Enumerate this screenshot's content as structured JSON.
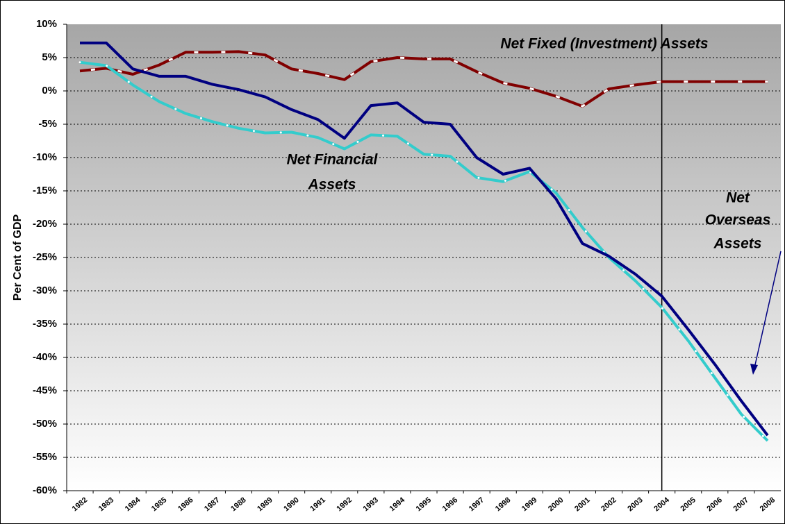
{
  "chart_data": {
    "type": "line",
    "y_label": "Per Cent of GDP",
    "categories": [
      "1982",
      "1983",
      "1984",
      "1985",
      "1986",
      "1987",
      "1988",
      "1989",
      "1990",
      "1991",
      "1992",
      "1993",
      "1994",
      "1995",
      "1996",
      "1997",
      "1998",
      "1999",
      "2000",
      "2001",
      "2002",
      "2003",
      "2004",
      "2005",
      "2006",
      "2007",
      "2008"
    ],
    "series": [
      {
        "name": "Net Overseas Assets",
        "color": "#000080",
        "style": "solid",
        "values": [
          7.2,
          7.2,
          3.3,
          2.2,
          2.2,
          1.0,
          0.2,
          -0.9,
          -2.8,
          -4.3,
          -7.1,
          -2.2,
          -1.8,
          -4.7,
          -5.0,
          -10.0,
          -12.5,
          -11.6,
          -16.2,
          -22.9,
          -24.8,
          -27.5,
          -30.8,
          -35.8,
          -41.0,
          -46.5,
          -51.7
        ]
      },
      {
        "name": "Net Financial Assets",
        "color": "#33cccc",
        "style": "dotted",
        "values": [
          4.3,
          3.8,
          0.9,
          -1.6,
          -3.4,
          -4.6,
          -5.6,
          -6.3,
          -6.2,
          -7.0,
          -8.7,
          -6.6,
          -6.8,
          -9.5,
          -9.8,
          -13.0,
          -13.6,
          -12.1,
          -15.3,
          -20.5,
          -25.0,
          -28.5,
          -32.5,
          -37.5,
          -43.0,
          -48.5,
          -52.5
        ]
      },
      {
        "name": "Net Fixed (Investment) Assets",
        "color": "#800000",
        "style": "dashed",
        "values": [
          3.0,
          3.4,
          2.5,
          3.9,
          5.8,
          5.8,
          5.9,
          5.4,
          3.3,
          2.6,
          1.7,
          4.4,
          5.0,
          4.8,
          4.8,
          2.9,
          1.2,
          0.4,
          -0.8,
          -2.3,
          0.3,
          0.9,
          1.4,
          1.4,
          1.4,
          1.4,
          1.4
        ]
      }
    ],
    "annotations": [
      {
        "lines": [
          "Net Fixed (Investment) Assets"
        ],
        "color": "#800000"
      },
      {
        "lines": [
          "Net Financial",
          "Assets"
        ],
        "color": "#3366ff"
      },
      {
        "lines": [
          "Net",
          "Overseas",
          "Assets"
        ],
        "color": "#000080"
      }
    ],
    "vline_at": "2004",
    "ylim": [
      -60,
      10
    ],
    "yticks": [
      {
        "value": -60,
        "label": "-60%"
      },
      {
        "value": -55,
        "label": "-55%"
      },
      {
        "value": -50,
        "label": "-50%"
      },
      {
        "value": -45,
        "label": "-45%"
      },
      {
        "value": -40,
        "label": "-40%"
      },
      {
        "value": -35,
        "label": "-35%"
      },
      {
        "value": -30,
        "label": "-30%"
      },
      {
        "value": -25,
        "label": "-25%"
      },
      {
        "value": -20,
        "label": "-20%"
      },
      {
        "value": -15,
        "label": "-15%"
      },
      {
        "value": -10,
        "label": "-10%"
      },
      {
        "value": -5,
        "label": "-5%"
      },
      {
        "value": 0,
        "label": "0%"
      },
      {
        "value": 5,
        "label": "5%"
      },
      {
        "value": 10,
        "label": "10%"
      }
    ],
    "grid": true
  }
}
